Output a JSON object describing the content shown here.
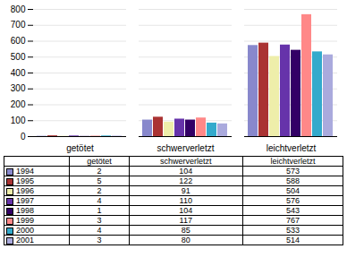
{
  "chart_data": {
    "type": "bar",
    "categories": [
      "getötet",
      "schwerverletzt",
      "leichtverletzt"
    ],
    "series": [
      {
        "name": "1994",
        "color": "#8888cc",
        "values": [
          2,
          104,
          573
        ]
      },
      {
        "name": "1995",
        "color": "#aa3333",
        "values": [
          5,
          122,
          588
        ]
      },
      {
        "name": "1996",
        "color": "#eeeeaa",
        "values": [
          2,
          91,
          504
        ]
      },
      {
        "name": "1997",
        "color": "#6633aa",
        "values": [
          4,
          110,
          576
        ]
      },
      {
        "name": "1998",
        "color": "#330066",
        "values": [
          1,
          104,
          543
        ]
      },
      {
        "name": "1999",
        "color": "#ff8888",
        "values": [
          3,
          117,
          767
        ]
      },
      {
        "name": "2000",
        "color": "#33aacc",
        "values": [
          4,
          85,
          533
        ]
      },
      {
        "name": "2001",
        "color": "#aaaadd",
        "values": [
          3,
          80,
          514
        ]
      }
    ],
    "ylim": [
      0,
      800
    ],
    "yticks": [
      0,
      100,
      200,
      300,
      400,
      500,
      600,
      700,
      800
    ],
    "grid": true,
    "legend": "bottom"
  }
}
